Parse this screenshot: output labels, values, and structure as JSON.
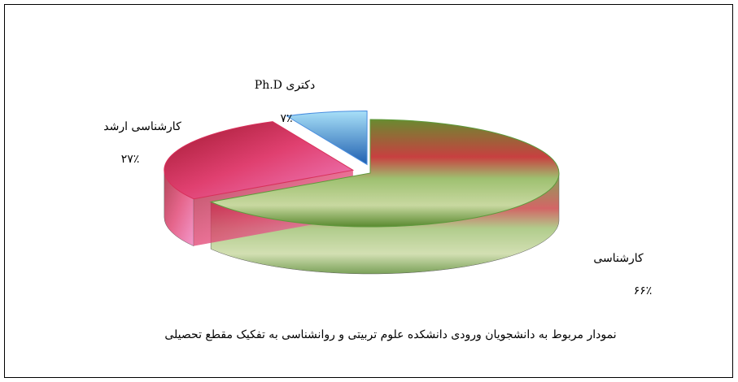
{
  "chart_data": {
    "type": "pie",
    "title": "نمودار مربوط به دانشجویان ورودی دانشکده علوم تربیتی و روانشناسی  به تفکیک مقطع تحصیلی",
    "categories": [
      "کارشناسی",
      "کارشناسی ارشد",
      "دکتری Ph.D"
    ],
    "values": [
      66,
      27,
      7
    ],
    "value_labels": [
      "۶۶٪",
      "۲۷٪",
      "۷٪"
    ],
    "colors": [
      "#5e9a3c",
      "#d8305a",
      "#4a8ee0"
    ]
  }
}
